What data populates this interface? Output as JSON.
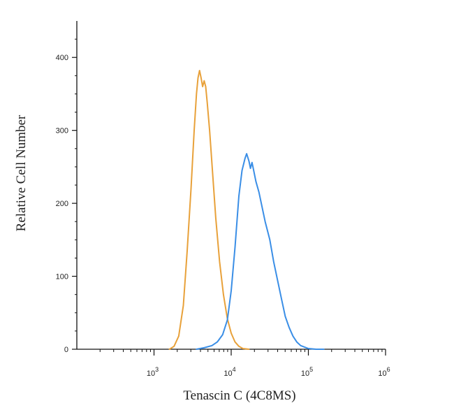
{
  "chart_data": {
    "type": "line",
    "title": "",
    "xlabel": "Tenascin C (4C8MS)",
    "ylabel": "Relative Cell Number",
    "xscale": "log",
    "xlim": [
      100,
      1000000
    ],
    "ylim": [
      0,
      450
    ],
    "x_ticks": [
      1000,
      10000,
      100000,
      1000000
    ],
    "x_tick_labels": [
      {
        "base": "10",
        "exp": "3"
      },
      {
        "base": "10",
        "exp": "4"
      },
      {
        "base": "10",
        "exp": "5"
      },
      {
        "base": "10",
        "exp": "6"
      }
    ],
    "y_ticks": [
      0,
      100,
      200,
      300,
      400
    ],
    "y_tick_labels": [
      "0",
      "100",
      "200",
      "300",
      "400"
    ],
    "grid": false,
    "legend": "none",
    "series": [
      {
        "color": "#e8a13a",
        "points": [
          [
            1585,
            0
          ],
          [
            1820,
            4
          ],
          [
            2089,
            18
          ],
          [
            2399,
            60
          ],
          [
            2692,
            135
          ],
          [
            3020,
            220
          ],
          [
            3311,
            300
          ],
          [
            3548,
            350
          ],
          [
            3715,
            372
          ],
          [
            3890,
            382
          ],
          [
            4074,
            372
          ],
          [
            4266,
            360
          ],
          [
            4467,
            368
          ],
          [
            4677,
            360
          ],
          [
            4898,
            338
          ],
          [
            5248,
            300
          ],
          [
            5754,
            240
          ],
          [
            6310,
            180
          ],
          [
            7079,
            120
          ],
          [
            7943,
            75
          ],
          [
            8913,
            42
          ],
          [
            10000,
            22
          ],
          [
            11220,
            10
          ],
          [
            12589,
            4
          ],
          [
            14125,
            1
          ],
          [
            16982,
            0
          ]
        ]
      },
      {
        "color": "#3a8ee6",
        "points": [
          [
            3548,
            0
          ],
          [
            4467,
            2
          ],
          [
            5623,
            5
          ],
          [
            6607,
            10
          ],
          [
            7762,
            20
          ],
          [
            8913,
            40
          ],
          [
            10000,
            80
          ],
          [
            11220,
            140
          ],
          [
            12589,
            210
          ],
          [
            13804,
            245
          ],
          [
            15136,
            262
          ],
          [
            15849,
            268
          ],
          [
            16982,
            258
          ],
          [
            17783,
            248
          ],
          [
            18620,
            256
          ],
          [
            19498,
            246
          ],
          [
            20893,
            230
          ],
          [
            22909,
            215
          ],
          [
            25119,
            195
          ],
          [
            27542,
            175
          ],
          [
            31623,
            150
          ],
          [
            35481,
            120
          ],
          [
            39811,
            95
          ],
          [
            44668,
            70
          ],
          [
            50119,
            45
          ],
          [
            56234,
            30
          ],
          [
            63096,
            18
          ],
          [
            70795,
            10
          ],
          [
            79433,
            5
          ],
          [
            89125,
            3
          ],
          [
            100000,
            1
          ],
          [
            125893,
            0
          ],
          [
            158489,
            0
          ]
        ]
      }
    ]
  }
}
